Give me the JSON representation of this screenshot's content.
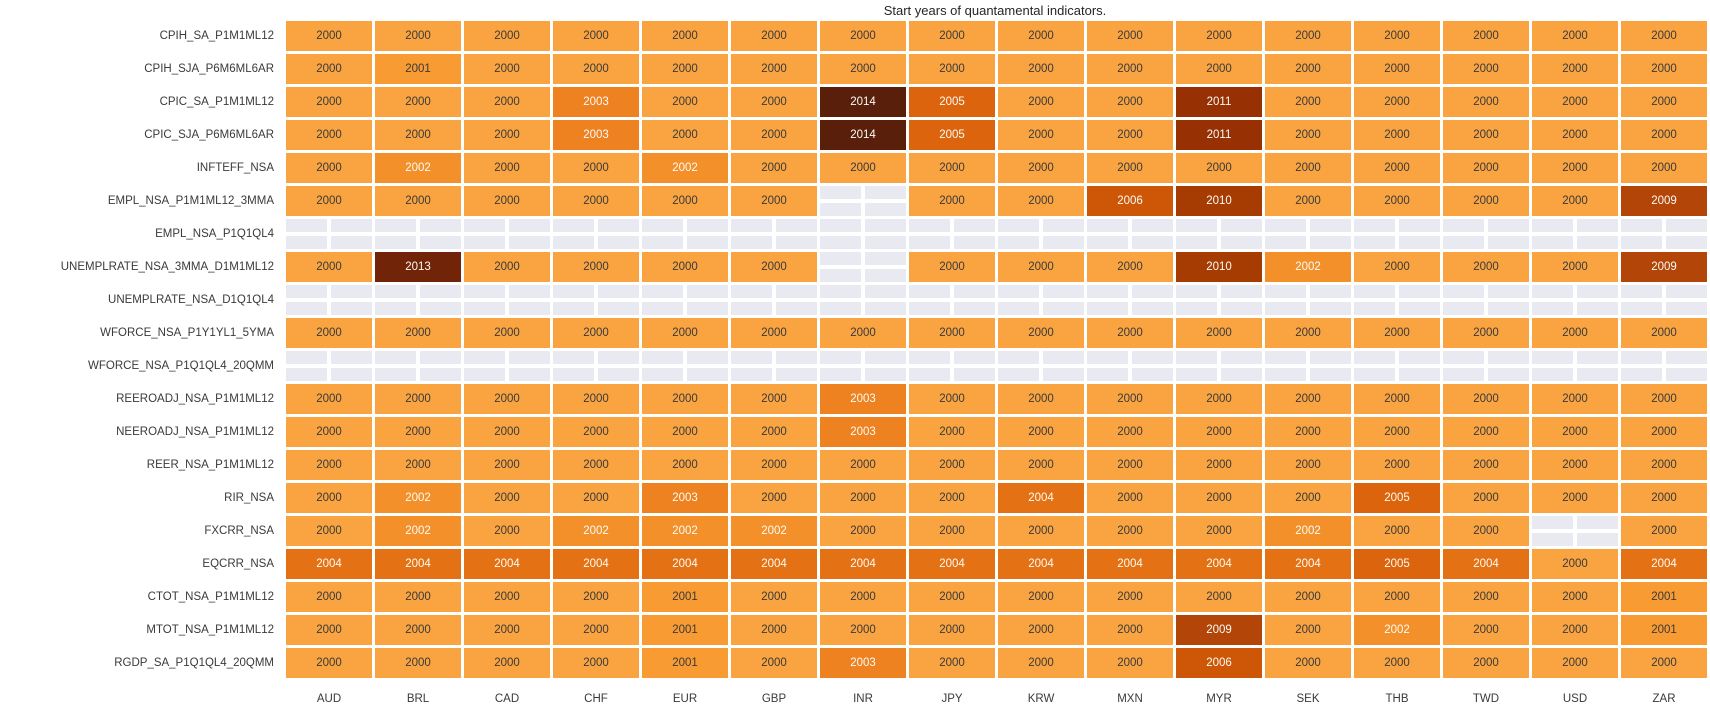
{
  "chart_data": {
    "type": "heatmap",
    "title": "Start years of quantamental indicators.",
    "xlabel": "",
    "ylabel": "",
    "legend": "none",
    "columns": [
      "AUD",
      "BRL",
      "CAD",
      "CHF",
      "EUR",
      "GBP",
      "INR",
      "JPY",
      "KRW",
      "MXN",
      "MYR",
      "SEK",
      "THB",
      "TWD",
      "USD",
      "ZAR"
    ],
    "rows": [
      {
        "label": "CPIH_SA_P1M1ML12",
        "values": [
          2000,
          2000,
          2000,
          2000,
          2000,
          2000,
          2000,
          2000,
          2000,
          2000,
          2000,
          2000,
          2000,
          2000,
          2000,
          2000
        ]
      },
      {
        "label": "CPIH_SJA_P6M6ML6AR",
        "values": [
          2000,
          2001,
          2000,
          2000,
          2000,
          2000,
          2000,
          2000,
          2000,
          2000,
          2000,
          2000,
          2000,
          2000,
          2000,
          2000
        ]
      },
      {
        "label": "CPIC_SA_P1M1ML12",
        "values": [
          2000,
          2000,
          2000,
          2003,
          2000,
          2000,
          2014,
          2005,
          2000,
          2000,
          2011,
          2000,
          2000,
          2000,
          2000,
          2000
        ]
      },
      {
        "label": "CPIC_SJA_P6M6ML6AR",
        "values": [
          2000,
          2000,
          2000,
          2003,
          2000,
          2000,
          2014,
          2005,
          2000,
          2000,
          2011,
          2000,
          2000,
          2000,
          2000,
          2000
        ]
      },
      {
        "label": "INFTEFF_NSA",
        "values": [
          2000,
          2002,
          2000,
          2000,
          2002,
          2000,
          2000,
          2000,
          2000,
          2000,
          2000,
          2000,
          2000,
          2000,
          2000,
          2000
        ]
      },
      {
        "label": "EMPL_NSA_P1M1ML12_3MMA",
        "values": [
          2000,
          2000,
          2000,
          2000,
          2000,
          2000,
          null,
          2000,
          2000,
          2006,
          2010,
          2000,
          2000,
          2000,
          2000,
          2009
        ]
      },
      {
        "label": "EMPL_NSA_P1Q1QL4",
        "values": [
          null,
          null,
          null,
          null,
          null,
          null,
          null,
          null,
          null,
          null,
          null,
          null,
          null,
          null,
          null,
          null
        ]
      },
      {
        "label": "UNEMPLRATE_NSA_3MMA_D1M1ML12",
        "values": [
          2000,
          2013,
          2000,
          2000,
          2000,
          2000,
          null,
          2000,
          2000,
          2000,
          2010,
          2002,
          2000,
          2000,
          2000,
          2009
        ]
      },
      {
        "label": "UNEMPLRATE_NSA_D1Q1QL4",
        "values": [
          null,
          null,
          null,
          null,
          null,
          null,
          null,
          null,
          null,
          null,
          null,
          null,
          null,
          null,
          null,
          null
        ]
      },
      {
        "label": "WFORCE_NSA_P1Y1YL1_5YMA",
        "values": [
          2000,
          2000,
          2000,
          2000,
          2000,
          2000,
          2000,
          2000,
          2000,
          2000,
          2000,
          2000,
          2000,
          2000,
          2000,
          2000
        ]
      },
      {
        "label": "WFORCE_NSA_P1Q1QL4_20QMM",
        "values": [
          null,
          null,
          null,
          null,
          null,
          null,
          null,
          null,
          null,
          null,
          null,
          null,
          null,
          null,
          null,
          null
        ]
      },
      {
        "label": "REEROADJ_NSA_P1M1ML12",
        "values": [
          2000,
          2000,
          2000,
          2000,
          2000,
          2000,
          2003,
          2000,
          2000,
          2000,
          2000,
          2000,
          2000,
          2000,
          2000,
          2000
        ]
      },
      {
        "label": "NEEROADJ_NSA_P1M1ML12",
        "values": [
          2000,
          2000,
          2000,
          2000,
          2000,
          2000,
          2003,
          2000,
          2000,
          2000,
          2000,
          2000,
          2000,
          2000,
          2000,
          2000
        ]
      },
      {
        "label": "REER_NSA_P1M1ML12",
        "values": [
          2000,
          2000,
          2000,
          2000,
          2000,
          2000,
          2000,
          2000,
          2000,
          2000,
          2000,
          2000,
          2000,
          2000,
          2000,
          2000
        ]
      },
      {
        "label": "RIR_NSA",
        "values": [
          2000,
          2002,
          2000,
          2000,
          2003,
          2000,
          2000,
          2000,
          2004,
          2000,
          2000,
          2000,
          2005,
          2000,
          2000,
          2000
        ]
      },
      {
        "label": "FXCRR_NSA",
        "values": [
          2000,
          2002,
          2000,
          2002,
          2002,
          2002,
          2000,
          2000,
          2000,
          2000,
          2000,
          2002,
          2000,
          2000,
          null,
          2000
        ]
      },
      {
        "label": "EQCRR_NSA",
        "values": [
          2004,
          2004,
          2004,
          2004,
          2004,
          2004,
          2004,
          2004,
          2004,
          2004,
          2004,
          2004,
          2005,
          2004,
          2000,
          2004
        ]
      },
      {
        "label": "CTOT_NSA_P1M1ML12",
        "values": [
          2000,
          2000,
          2000,
          2000,
          2001,
          2000,
          2000,
          2000,
          2000,
          2000,
          2000,
          2000,
          2000,
          2000,
          2000,
          2001
        ]
      },
      {
        "label": "MTOT_NSA_P1M1ML12",
        "values": [
          2000,
          2000,
          2000,
          2000,
          2001,
          2000,
          2000,
          2000,
          2000,
          2000,
          2009,
          2000,
          2002,
          2000,
          2000,
          2001
        ]
      },
      {
        "label": "RGDP_SA_P1Q1QL4_20QMM",
        "values": [
          2000,
          2000,
          2000,
          2000,
          2001,
          2000,
          2003,
          2000,
          2000,
          2000,
          2006,
          2000,
          2000,
          2000,
          2000,
          2000
        ]
      }
    ],
    "color_scale": {
      "2000": "#F9A441",
      "2001": "#F89B33",
      "2002": "#F4902A",
      "2003": "#EE8120",
      "2004": "#E47215",
      "2005": "#DC640D",
      "2006": "#CD5707",
      "2009": "#B24507",
      "2010": "#A73C03",
      "2011": "#973103",
      "2013": "#712408",
      "2014": "#5A1F0A"
    },
    "missing_color": "#E9E9F1",
    "dark_text_color": "#3A3A3A",
    "light_text_color": "#FBFBF6",
    "dark_text_years": [
      2000,
      2001
    ]
  }
}
